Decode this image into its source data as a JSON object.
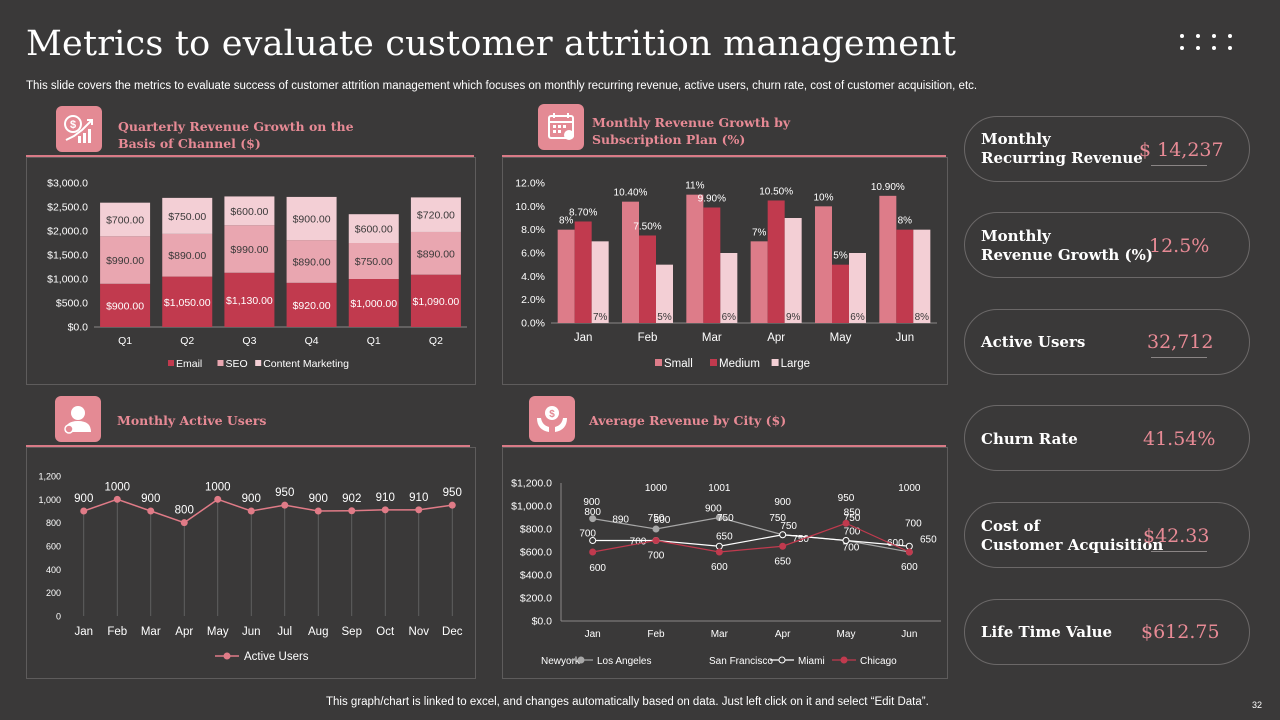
{
  "header": {
    "title": "Metrics to evaluate customer attrition management",
    "subtitle": "This slide covers the metrics to evaluate success of customer attrition management which focuses on monthly recurring revenue, active users, churn rate, cost of customer acquisition, etc."
  },
  "panels": {
    "quarterly": {
      "title_line1": "Quarterly Revenue Growth on the",
      "title_line2": "Basis of Channel ($)",
      "icon": "revenue-chart-icon"
    },
    "monthly_growth": {
      "title_line1": "Monthly Revenue Growth by",
      "title_line2": "Subscription Plan (%)",
      "icon": "calendar-icon"
    },
    "active_users": {
      "title": "Monthly Active Users",
      "icon": "user-icon"
    },
    "city": {
      "title": "Average Revenue by City ($)",
      "icon": "money-hands-icon"
    }
  },
  "chart_data": [
    {
      "id": "quarterly",
      "type": "bar",
      "stacked": true,
      "categories": [
        "Q1",
        "Q2",
        "Q3",
        "Q4",
        "Q1",
        "Q2"
      ],
      "series": [
        {
          "name": "Email",
          "values": [
            900,
            1050,
            1130,
            920,
            1000,
            1090
          ],
          "labels": [
            "$900.00",
            "$1,050.00",
            "$1,130.00",
            "$920.00",
            "$1,000.00",
            "$1,090.00"
          ],
          "color": "#c13a4e"
        },
        {
          "name": "SEO",
          "values": [
            990,
            890,
            990,
            890,
            750,
            890
          ],
          "labels": [
            "$990.00",
            "$890.00",
            "$990.00",
            "$890.00",
            "$750.00",
            "$890.00"
          ],
          "color": "#e9a6b0"
        },
        {
          "name": "Content Marketing",
          "values": [
            700,
            750,
            600,
            900,
            600,
            720
          ],
          "labels": [
            "$700.00",
            "$750.00",
            "$600.00",
            "$900.00",
            "$600.00",
            "$720.00"
          ],
          "color": "#f3cfd5"
        }
      ],
      "yticks": [
        "$0.0",
        "$500.0",
        "$1,000.0",
        "$1,500.0",
        "$2,000.0",
        "$2,500.0",
        "$3,000.0"
      ],
      "ylim": [
        0,
        3000
      ],
      "legend": "bottom"
    },
    {
      "id": "monthly_growth",
      "type": "bar",
      "categories": [
        "Jan",
        "Feb",
        "Mar",
        "Apr",
        "May",
        "Jun"
      ],
      "series": [
        {
          "name": "Small",
          "values": [
            8,
            10.4,
            11,
            7,
            10,
            10.9
          ],
          "labels": [
            "8%",
            "10.40%",
            "11%",
            "7%",
            "10%",
            "10.90%"
          ],
          "color": "#dd7c89"
        },
        {
          "name": "Medium",
          "values": [
            8.7,
            7.5,
            9.9,
            10.5,
            5,
            8
          ],
          "labels": [
            "8.70%",
            "7.50%",
            "9.90%",
            "10.50%",
            "5%",
            "8%"
          ],
          "color": "#c13a4e"
        },
        {
          "name": "Large",
          "values": [
            7,
            5,
            6,
            9,
            6,
            8
          ],
          "labels": [
            "7%",
            "5%",
            "6%",
            "9%",
            "6%",
            "8%"
          ],
          "color": "#f3cfd5"
        }
      ],
      "yticks": [
        "0.0%",
        "2.0%",
        "4.0%",
        "6.0%",
        "8.0%",
        "10.0%",
        "12.0%"
      ],
      "ylim": [
        0,
        12
      ],
      "legend": "bottom"
    },
    {
      "id": "active_users",
      "type": "line",
      "categories": [
        "Jan",
        "Feb",
        "Mar",
        "Apr",
        "May",
        "Jun",
        "Jul",
        "Aug",
        "Sep",
        "Oct",
        "Nov",
        "Dec"
      ],
      "series": [
        {
          "name": "Active Users",
          "values": [
            900,
            1000,
            900,
            800,
            1000,
            900,
            950,
            900,
            902,
            910,
            910,
            950
          ],
          "color": "#e07b87"
        }
      ],
      "yticks": [
        "0",
        "200",
        "400",
        "600",
        "800",
        "1,000",
        "1,200"
      ],
      "ylim": [
        0,
        1200
      ],
      "legend": "bottom"
    },
    {
      "id": "city",
      "type": "line",
      "categories": [
        "Jan",
        "Feb",
        "Mar",
        "Apr",
        "May",
        "Jun"
      ],
      "series": [
        {
          "name": "Newyork",
          "values": [
            900,
            1000,
            1001,
            900,
            950,
            1000
          ],
          "color": "#3a3939"
        },
        {
          "name": "Los Angeles",
          "values": [
            890,
            800,
            900,
            750,
            700,
            600
          ],
          "color": "#a7a7a7"
        },
        {
          "name": "San Francisco",
          "values": [
            800,
            750,
            750,
            750,
            750,
            700
          ],
          "color": "#3a3939"
        },
        {
          "name": "Miami",
          "values": [
            700,
            700,
            650,
            750,
            700,
            650
          ],
          "color": "#ffffff"
        },
        {
          "name": "Chicago",
          "values": [
            600,
            700,
            600,
            650,
            850,
            600
          ],
          "color": "#c13a4e"
        }
      ],
      "yticks": [
        "$0.0",
        "$200.0",
        "$400.0",
        "$600.0",
        "$800.0",
        "$1,000.0",
        "$1,200.0"
      ],
      "ylim": [
        0,
        1200
      ],
      "legend": "bottom"
    }
  ],
  "kpis": [
    {
      "label_line1": "Monthly",
      "label_line2": "Recurring Revenue",
      "value": "$ 14,237"
    },
    {
      "label_line1": "Monthly",
      "label_line2": "Revenue Growth (%)",
      "value": "12.5%"
    },
    {
      "label_line1": "Active Users",
      "label_line2": "",
      "value": "32,712"
    },
    {
      "label_line1": "Churn Rate",
      "label_line2": "",
      "value": "41.54%"
    },
    {
      "label_line1": "Cost of",
      "label_line2": "Customer Acquisition",
      "value": "$42.33"
    },
    {
      "label_line1": "Life Time Value",
      "label_line2": "",
      "value": "$612.75"
    }
  ],
  "footer": {
    "note": "This graph/chart is linked to excel, and changes automatically based on data. Just left click on it and select “Edit Data”.",
    "page_number": "32"
  }
}
